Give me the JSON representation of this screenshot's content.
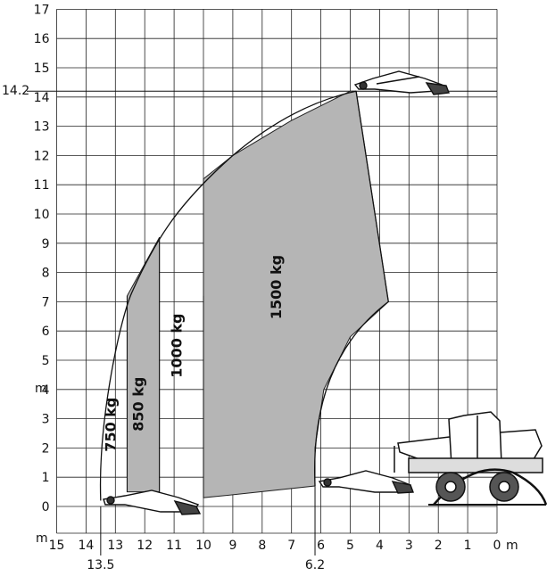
{
  "chart_data": {
    "type": "area",
    "title": "",
    "x_unit": "m",
    "y_unit": "m",
    "xlim": [
      15,
      0
    ],
    "ylim": [
      0,
      17
    ],
    "x_ticks": [
      15,
      14,
      13,
      12,
      11,
      10,
      9,
      8,
      7,
      6,
      5,
      4,
      3,
      2,
      1,
      0
    ],
    "y_ticks": [
      0,
      1,
      2,
      3,
      4,
      5,
      6,
      7,
      8,
      9,
      10,
      11,
      12,
      13,
      14,
      15,
      16,
      17
    ],
    "grid": true,
    "extra_ticks": {
      "x": [
        "13.5",
        "6.2"
      ],
      "y": [
        "14.2"
      ]
    },
    "envelope": [
      {
        "x": 13.5,
        "y": 0.3
      },
      {
        "x": 13.3,
        "y": 3
      },
      {
        "x": 12.5,
        "y": 7.2
      },
      {
        "x": 11.5,
        "y": 9.2
      },
      {
        "x": 10,
        "y": 11.2
      },
      {
        "x": 9,
        "y": 12
      },
      {
        "x": 7,
        "y": 13.2
      },
      {
        "x": 5,
        "y": 14.2
      }
    ],
    "zones": [
      {
        "label": "750 kg",
        "x_from": 13.5,
        "x_to": 12.6,
        "fill": "#ffffff"
      },
      {
        "label": "850 kg",
        "x_from": 12.6,
        "x_to": 11.5,
        "fill": "#b5b5b5"
      },
      {
        "label": "1000 kg",
        "x_from": 11.5,
        "x_to": 10,
        "fill": "#ffffff"
      },
      {
        "label": "1500 kg",
        "x_from": 10,
        "x_to": 3.7,
        "fill": "#b5b5b5"
      }
    ],
    "inner_boundary": [
      {
        "x": 6.2,
        "y": 0.7
      },
      {
        "x": 6.2,
        "y": 2
      },
      {
        "x": 5.9,
        "y": 4
      },
      {
        "x": 5,
        "y": 5.8
      },
      {
        "x": 3.7,
        "y": 7
      },
      {
        "x": 4.8,
        "y": 14.2
      }
    ]
  }
}
